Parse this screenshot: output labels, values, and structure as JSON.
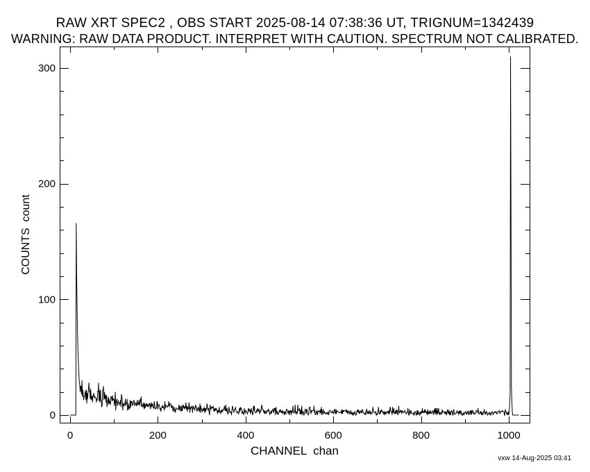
{
  "page": {
    "background_color": "#ffffff",
    "foreground_color": "#000000"
  },
  "chart_data": {
    "type": "line",
    "title": "RAW XRT SPEC2 , OBS START 2025-08-14 07:38:36 UT, TRIGNUM=1342439",
    "subtitle": "WARNING: RAW DATA PRODUCT. INTERPRET WITH CAUTION. SPECTRUM NOT CALIBRATED.",
    "xlabel": "CHANNEL  chan",
    "ylabel": "COUNTS  count",
    "footer_credit": "vxw 14-Aug-2025 03:41",
    "grid": false,
    "legend": false,
    "line_color": "#000000",
    "xlim": [
      -24,
      1047
    ],
    "ylim": [
      -7,
      319
    ],
    "x_major_ticks": [
      0,
      200,
      400,
      600,
      800,
      1000
    ],
    "x_minor_ticks": [
      100,
      300,
      500,
      700,
      900
    ],
    "y_major_ticks": [
      0,
      100,
      200,
      300
    ],
    "y_minor_ticks": [
      20,
      40,
      60,
      80,
      120,
      140,
      160,
      180,
      220,
      240,
      260,
      280
    ],
    "n_channels": 1024,
    "peaks": [
      {
        "name": "low-channel peak",
        "channel": 14,
        "counts": 166
      },
      {
        "name": "overflow peak",
        "channel": 1004,
        "counts": 310
      }
    ],
    "zero_ranges": [
      [
        0,
        13
      ],
      [
        1009,
        1023
      ]
    ],
    "exact_points": [
      [
        14,
        166
      ],
      [
        15,
        118
      ],
      [
        16,
        92
      ],
      [
        17,
        70
      ],
      [
        18,
        54
      ],
      [
        19,
        44
      ],
      [
        20,
        36
      ],
      [
        1001,
        4
      ],
      [
        1002,
        9
      ],
      [
        1003,
        18
      ],
      [
        1004,
        310
      ],
      [
        1005,
        185
      ],
      [
        1006,
        25
      ],
      [
        1007,
        12
      ],
      [
        1008,
        3
      ]
    ],
    "noisy_range": [
      21,
      1000
    ],
    "envelope_anchors": [
      [
        21,
        29
      ],
      [
        25,
        25
      ],
      [
        30,
        22
      ],
      [
        40,
        19
      ],
      [
        55,
        16.5
      ],
      [
        75,
        14
      ],
      [
        100,
        12
      ],
      [
        130,
        10
      ],
      [
        170,
        8.5
      ],
      [
        220,
        7
      ],
      [
        280,
        5.5
      ],
      [
        350,
        4.5
      ],
      [
        430,
        3.6
      ],
      [
        520,
        3.0
      ],
      [
        650,
        2.6
      ],
      [
        800,
        2.3
      ],
      [
        930,
        2.2
      ],
      [
        1000,
        2.4
      ]
    ],
    "noise": {
      "model": "poisson",
      "seed": 123456789
    }
  }
}
